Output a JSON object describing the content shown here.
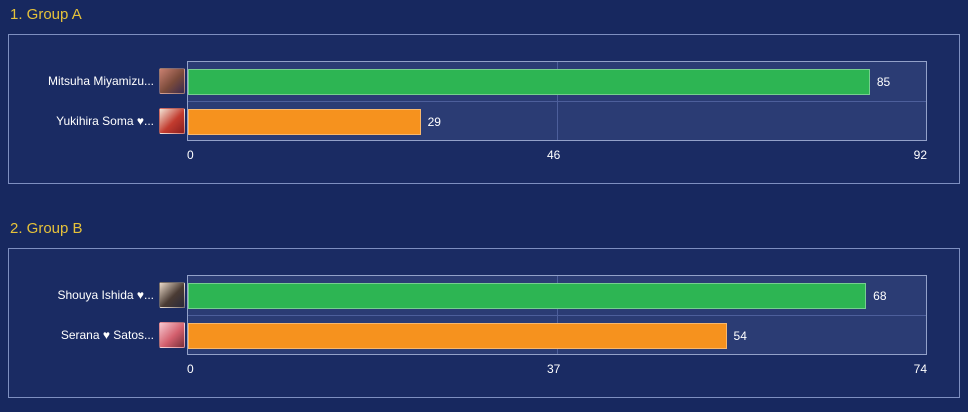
{
  "page": {
    "background_color": "#17285f",
    "heading_color": "#e6c23a",
    "panel_border_color": "#7e8fc0",
    "plot_background_color": "#2b3c74"
  },
  "chart_data": [
    {
      "type": "bar",
      "orientation": "horizontal",
      "title": "1. Group A",
      "categories": [
        "Mitsuha Miyamizu...",
        "Yukihira Soma ♥..."
      ],
      "values": [
        85,
        29
      ],
      "colors": [
        "#2db553",
        "#f6921e"
      ],
      "xlim": [
        0,
        92
      ],
      "ticks": [
        "0",
        "46",
        "92"
      ],
      "grid": true,
      "value_labels": true,
      "legend": false
    },
    {
      "type": "bar",
      "orientation": "horizontal",
      "title": "2. Group B",
      "categories": [
        "Shouya Ishida ♥...",
        "Serana ♥ Satos..."
      ],
      "values": [
        68,
        54
      ],
      "colors": [
        "#2db553",
        "#f6921e"
      ],
      "xlim": [
        0,
        74
      ],
      "ticks": [
        "0",
        "37",
        "74"
      ],
      "grid": true,
      "value_labels": true,
      "legend": false
    }
  ]
}
